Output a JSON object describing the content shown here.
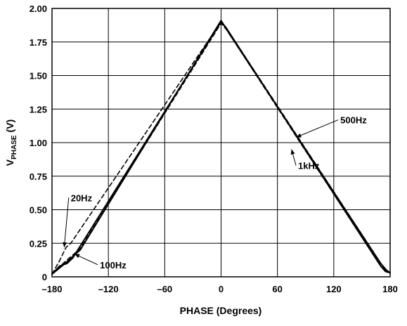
{
  "chart_data": {
    "type": "line",
    "title": "",
    "xlabel": "PHASE (Degrees)",
    "ylabel_main": "V",
    "ylabel_sub": "PHASE",
    "ylabel_unit": "(V)",
    "xlim": [
      -180,
      180
    ],
    "ylim": [
      0,
      2.0
    ],
    "x_ticks": [
      -180,
      -120,
      -60,
      0,
      60,
      120,
      180
    ],
    "x_tick_labels": [
      "–180",
      "–120",
      "–60",
      "0",
      "60",
      "120",
      "180"
    ],
    "y_ticks": [
      0,
      0.25,
      0.5,
      0.75,
      1.0,
      1.25,
      1.5,
      1.75,
      2.0
    ],
    "y_tick_labels": [
      "0",
      "0.25",
      "0.50",
      "0.75",
      "1.00",
      "1.25",
      "1.50",
      "1.75",
      "2.00"
    ],
    "grid": true,
    "series": [
      {
        "name": "20Hz",
        "style": "dashed",
        "x": [
          -180,
          -172,
          -165,
          -160,
          0,
          5,
          172,
          176,
          180
        ],
        "y": [
          0.02,
          0.12,
          0.22,
          0.25,
          1.9,
          1.86,
          0.08,
          0.04,
          0.03
        ]
      },
      {
        "name": "100Hz",
        "style": "solid",
        "x": [
          -180,
          -172,
          -164,
          -158,
          0,
          5,
          170,
          175,
          180
        ],
        "y": [
          0.02,
          0.08,
          0.1,
          0.14,
          1.9,
          1.86,
          0.08,
          0.04,
          0.03
        ]
      },
      {
        "name": "500Hz",
        "style": "solid",
        "x": [
          -180,
          -166,
          -150,
          0,
          8,
          170,
          176,
          180
        ],
        "y": [
          0.02,
          0.1,
          0.2,
          1.91,
          1.82,
          0.1,
          0.05,
          0.03
        ]
      },
      {
        "name": "1kHz",
        "style": "dashed",
        "x": [
          -180,
          -165,
          -150,
          0,
          6,
          170,
          176,
          180
        ],
        "y": [
          0.02,
          0.12,
          0.21,
          1.89,
          1.84,
          0.08,
          0.04,
          0.03
        ]
      }
    ],
    "annotations": [
      {
        "text": "20Hz",
        "series": "20Hz",
        "label_x": -160,
        "label_y": 0.59,
        "arrow_to_x": -167,
        "arrow_to_y": 0.22
      },
      {
        "text": "100Hz",
        "series": "100Hz",
        "label_x": -129,
        "label_y": 0.09,
        "arrow_to_x": -156,
        "arrow_to_y": 0.17
      },
      {
        "text": "500Hz",
        "series": "500Hz",
        "label_x": 127,
        "label_y": 1.17,
        "arrow_to_x": 80,
        "arrow_to_y": 1.04
      },
      {
        "text": "1kHz",
        "series": "1kHz",
        "label_x": 82,
        "label_y": 0.83,
        "arrow_to_x": 75,
        "arrow_to_y": 0.95
      }
    ]
  }
}
